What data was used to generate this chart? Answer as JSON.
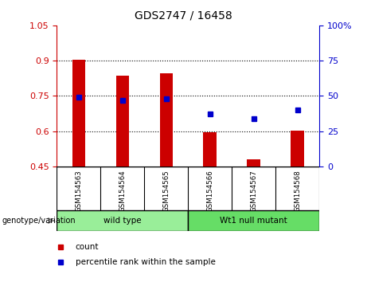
{
  "title": "GDS2747 / 16458",
  "samples": [
    "GSM154563",
    "GSM154564",
    "GSM154565",
    "GSM154566",
    "GSM154567",
    "GSM154568"
  ],
  "bar_values": [
    0.905,
    0.835,
    0.845,
    0.595,
    0.48,
    0.602
  ],
  "bar_baseline": 0.45,
  "bar_color": "#cc0000",
  "percentile_values": [
    49,
    47,
    48,
    37,
    34,
    40
  ],
  "percentile_color": "#0000cc",
  "left_ylim": [
    0.45,
    1.05
  ],
  "left_yticks": [
    0.45,
    0.6,
    0.75,
    0.9,
    1.05
  ],
  "left_yticklabels": [
    "0.45",
    "0.6",
    "0.75",
    "0.9",
    "1.05"
  ],
  "right_ylim": [
    0,
    100
  ],
  "right_yticks": [
    0,
    25,
    50,
    75,
    100
  ],
  "right_yticklabels": [
    "0",
    "25",
    "50",
    "75",
    "100%"
  ],
  "left_tick_color": "#cc0000",
  "right_tick_color": "#0000cc",
  "groups": [
    {
      "label": "wild type",
      "indices": [
        0,
        1,
        2
      ],
      "color": "#99ee99"
    },
    {
      "label": "Wt1 null mutant",
      "indices": [
        3,
        4,
        5
      ],
      "color": "#66dd66"
    }
  ],
  "group_label": "genotype/variation",
  "legend_items": [
    {
      "label": "count",
      "color": "#cc0000"
    },
    {
      "label": "percentile rank within the sample",
      "color": "#0000cc"
    }
  ],
  "dotted_grid_values": [
    0.6,
    0.75,
    0.9
  ],
  "sample_area_color": "#cccccc",
  "background_color": "#ffffff",
  "plot_bg_color": "#ffffff",
  "bar_width": 0.3
}
